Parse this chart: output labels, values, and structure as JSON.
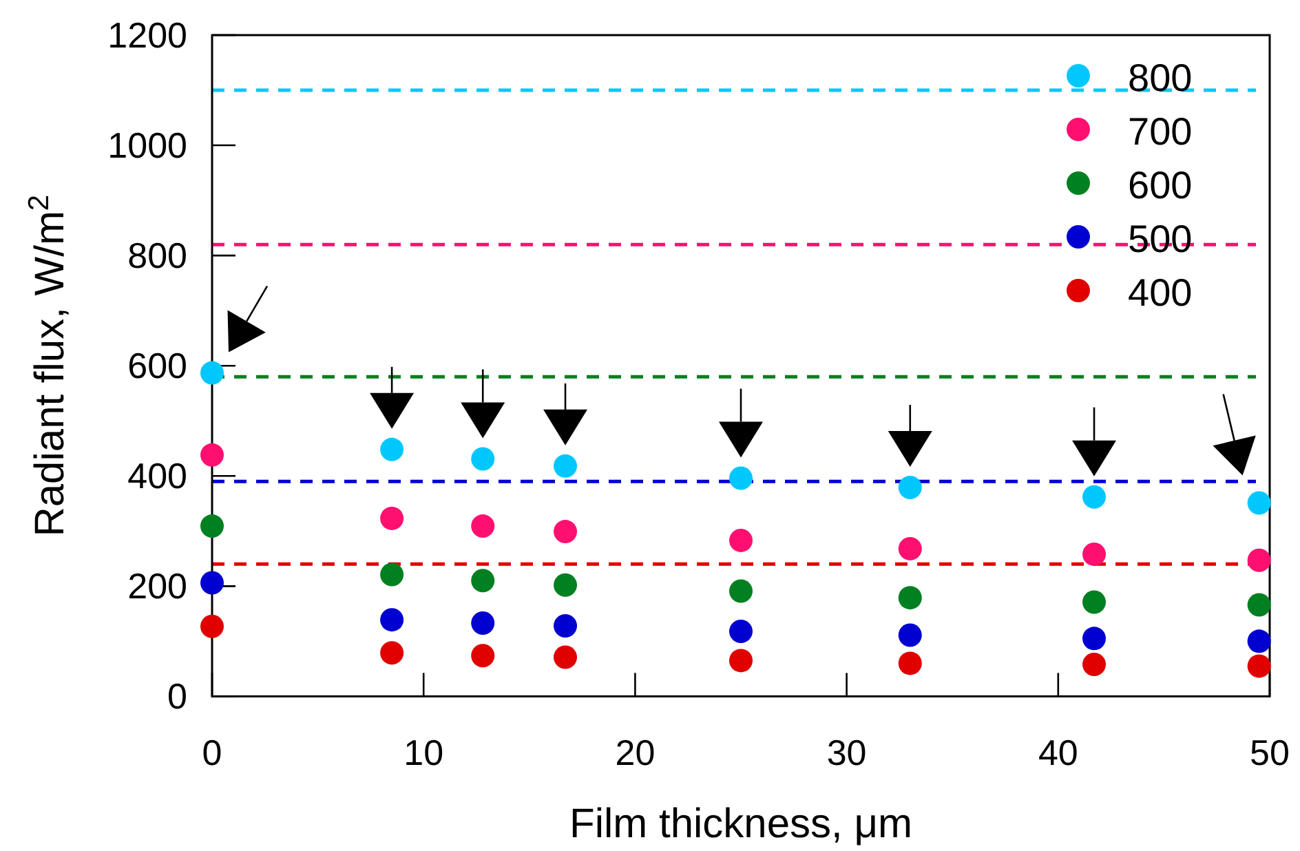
{
  "chart_data": {
    "type": "scatter",
    "xlabel": "Film thickness, μm",
    "ylabel": "Radiant flux, W/m$^{2}$",
    "x": [
      0,
      8.5,
      12.8,
      16.7,
      25,
      33,
      41.7,
      49.5
    ],
    "series": [
      {
        "name": "800",
        "color": "#00c8ff",
        "values": [
          587,
          448,
          431,
          418,
          396,
          379,
          362,
          351
        ]
      },
      {
        "name": "700",
        "color": "#ff1070",
        "values": [
          438,
          323,
          309,
          299,
          283,
          268,
          258,
          247
        ]
      },
      {
        "name": "600",
        "color": "#008020",
        "values": [
          309,
          221,
          210,
          202,
          191,
          179,
          171,
          166
        ]
      },
      {
        "name": "500",
        "color": "#0000d0",
        "values": [
          206,
          139,
          133,
          128,
          118,
          111,
          105,
          100
        ]
      },
      {
        "name": "400",
        "color": "#e00000",
        "values": [
          127,
          79,
          74,
          71,
          65,
          60,
          58,
          55
        ]
      }
    ],
    "ref_lines": [
      {
        "axis": "y",
        "value": 1100,
        "color": "#00c8ff",
        "line_style": "dashed"
      },
      {
        "axis": "y",
        "value": 820,
        "color": "#ff1070",
        "line_style": "dashed"
      },
      {
        "axis": "y",
        "value": 580,
        "color": "#008020",
        "line_style": "dashed"
      },
      {
        "axis": "y",
        "value": 390,
        "color": "#0000d0",
        "line_style": "dashed"
      },
      {
        "axis": "y",
        "value": 240,
        "color": "#e00000",
        "line_style": "dashed"
      }
    ],
    "xlim": [
      0,
      50
    ],
    "xticks": [
      0,
      10,
      20,
      30,
      40,
      50
    ],
    "ylim": [
      0,
      1200
    ],
    "yticks": [
      0,
      200,
      400,
      600,
      800,
      1000,
      1200
    ],
    "marker": "circle",
    "legend": "top right",
    "grid": false
  }
}
